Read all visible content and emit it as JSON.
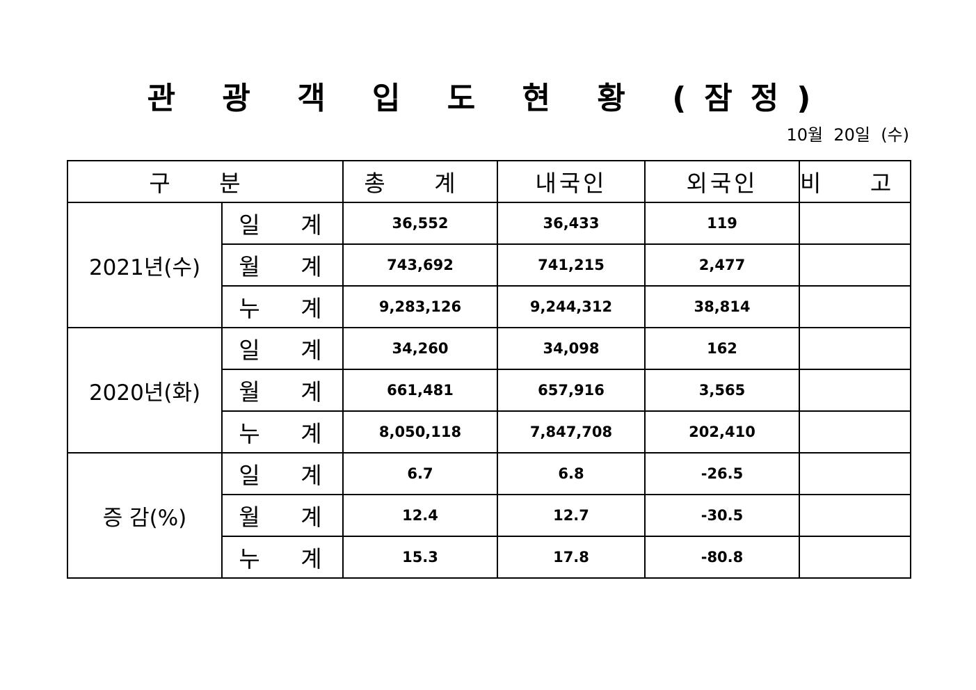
{
  "title": "관 광 객 입 도 현 황 (잠정)",
  "date": "10월  20일  (수)",
  "headers": {
    "category": "구  분",
    "total": "총  계",
    "domestic": "내국인",
    "foreign": "외국인",
    "remarks": "비  고"
  },
  "groups": [
    {
      "label": "2021년(수)",
      "rows": [
        {
          "sub": "일 계",
          "total": "36,552",
          "domestic": "36,433",
          "foreign": "119",
          "remarks": ""
        },
        {
          "sub": "월 계",
          "total": "743,692",
          "domestic": "741,215",
          "foreign": "2,477",
          "remarks": ""
        },
        {
          "sub": "누 계",
          "total": "9,283,126",
          "domestic": "9,244,312",
          "foreign": "38,814",
          "remarks": ""
        }
      ]
    },
    {
      "label": "2020년(화)",
      "rows": [
        {
          "sub": "일 계",
          "total": "34,260",
          "domestic": "34,098",
          "foreign": "162",
          "remarks": ""
        },
        {
          "sub": "월 계",
          "total": "661,481",
          "domestic": "657,916",
          "foreign": "3,565",
          "remarks": ""
        },
        {
          "sub": "누 계",
          "total": "8,050,118",
          "domestic": "7,847,708",
          "foreign": "202,410",
          "remarks": ""
        }
      ]
    },
    {
      "label": "증 감(%)",
      "rows": [
        {
          "sub": "일 계",
          "total": "6.7",
          "domestic": "6.8",
          "foreign": "-26.5",
          "remarks": ""
        },
        {
          "sub": "월 계",
          "total": "12.4",
          "domestic": "12.7",
          "foreign": "-30.5",
          "remarks": ""
        },
        {
          "sub": "누 계",
          "total": "15.3",
          "domestic": "17.8",
          "foreign": "-80.8",
          "remarks": ""
        }
      ]
    }
  ]
}
